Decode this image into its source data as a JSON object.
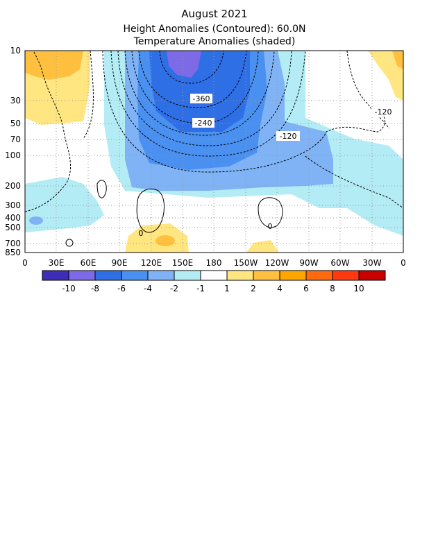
{
  "title": {
    "line1": "August 2021",
    "line2": "Height Anomalies (Contoured): 60.0N",
    "line3": "Temperature Anomalies (shaded)"
  },
  "chart_data": {
    "type": "heatmap",
    "x_ticks": [
      "0",
      "30E",
      "60E",
      "90E",
      "120E",
      "150E",
      "180",
      "150W",
      "120W",
      "90W",
      "60W",
      "30W",
      "0"
    ],
    "y_ticks": [
      "10",
      "30",
      "50",
      "70",
      "100",
      "200",
      "300",
      "400",
      "500",
      "700",
      "850"
    ],
    "y_scale": "log-pressure",
    "grid": true,
    "contour_labels": [
      "-360",
      "-240",
      "-120",
      "-120",
      "0",
      "0"
    ],
    "colorbar": {
      "labels": [
        "-10",
        "-8",
        "-6",
        "-4",
        "-2",
        "-1",
        "1",
        "2",
        "4",
        "6",
        "8",
        "10"
      ],
      "colors": [
        "#3d2db8",
        "#7c6ae6",
        "#2f6fe6",
        "#4a90f0",
        "#7fb3f5",
        "#b3ecf5",
        "#ffffff",
        "#ffe680",
        "#ffc040",
        "#ffa500",
        "#ff6a10",
        "#ff3a10",
        "#c80000"
      ]
    }
  }
}
